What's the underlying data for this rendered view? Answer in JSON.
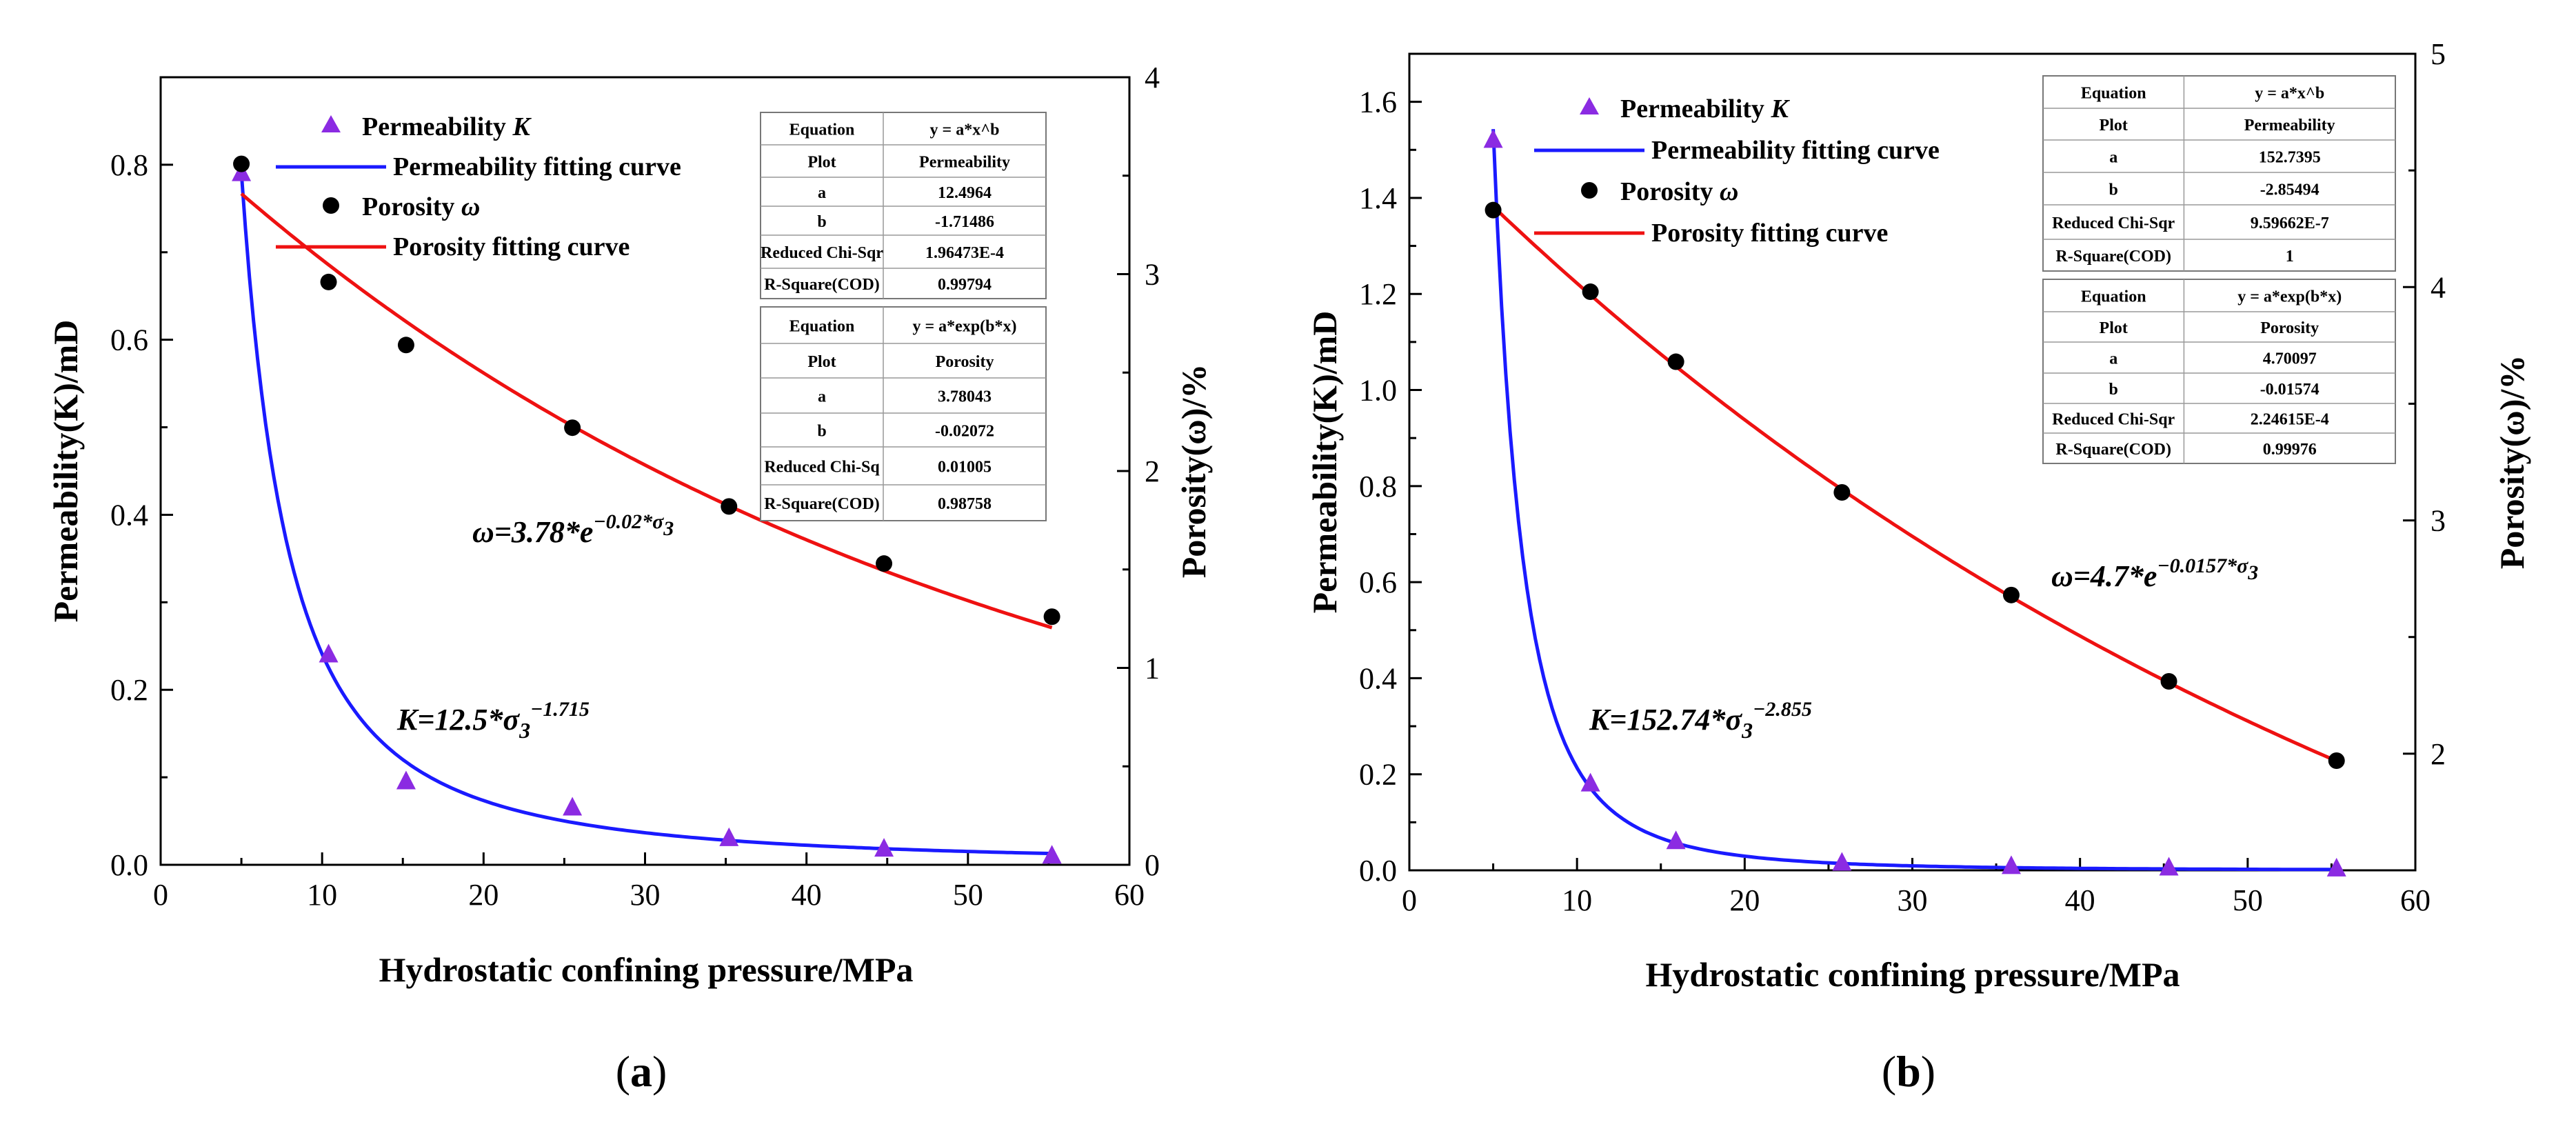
{
  "figure": {
    "panel_labels": [
      "a",
      "b"
    ]
  },
  "colors": {
    "permeability": "#8b2be2",
    "permeability_curve": "#1a1aff",
    "porosity": "#000000",
    "porosity_curve": "#ee1111"
  },
  "chart_data": [
    {
      "id": "a",
      "type": "scatter",
      "panel_label": "a",
      "xlabel": "Hydrostatic confining pressure/MPa",
      "ylabel_left": "Permeability(K)/mD",
      "ylabel_right": "Porosity(ω)/%",
      "xlim": [
        0,
        60
      ],
      "ylim_left": [
        0,
        0.9
      ],
      "ylim_right": [
        0,
        4
      ],
      "xticks": [
        0,
        10,
        20,
        30,
        40,
        50,
        60
      ],
      "yticks_left": [
        0.0,
        0.2,
        0.4,
        0.6,
        0.8
      ],
      "yticks_right": [
        0,
        1,
        2,
        3,
        4
      ],
      "xtick_labels": [
        "0",
        "10",
        "20",
        "30",
        "40",
        "50",
        "60"
      ],
      "ytick_labels_left": [
        "0.0",
        "0.2",
        "0.4",
        "0.6",
        "0.8"
      ],
      "ytick_labels_right": [
        "0",
        "1",
        "2",
        "3",
        "4"
      ],
      "legend": [
        "Permeability K",
        "Permeability fitting curve",
        "Porosity ω",
        "Porosity fitting curve"
      ],
      "series": [
        {
          "name": "Permeability K",
          "axis": "left",
          "marker": "triangle",
          "x": [
            5,
            10.4,
            15.2,
            25.5,
            35.2,
            44.8,
            55.2
          ],
          "y": [
            0.79,
            0.24,
            0.095,
            0.065,
            0.03,
            0.018,
            0.01
          ]
        },
        {
          "name": "Porosity ω",
          "axis": "right",
          "marker": "circle",
          "x": [
            5,
            10.4,
            15.2,
            25.5,
            35.2,
            44.8,
            55.2
          ],
          "y": [
            3.56,
            2.96,
            2.64,
            2.22,
            1.82,
            1.53,
            1.26
          ]
        }
      ],
      "fits": [
        {
          "name": "Permeability fitting curve",
          "axis": "left",
          "model": "power",
          "a": 12.4964,
          "b": -1.71486,
          "xrange": [
            5,
            55.2
          ]
        },
        {
          "name": "Porosity fitting curve",
          "axis": "right",
          "model": "exp",
          "a": 3.78043,
          "b": -0.02072,
          "xrange": [
            5,
            55.2
          ]
        }
      ],
      "annotations": {
        "porosity_eq": {
          "lhs": "ω",
          "rhs": "=3.78*e",
          "exp": "−0.02*σ",
          "exp_sub": "3"
        },
        "perm_eq": {
          "lhs": "K",
          "rhs": "=12.5*σ",
          "sub": "3",
          "exp": "−1.715"
        }
      },
      "tables": [
        {
          "rows": [
            [
              "Equation",
              "y = a*x^b"
            ],
            [
              "Plot",
              "Permeability"
            ],
            [
              "a",
              "12.4964"
            ],
            [
              "b",
              "-1.71486"
            ],
            [
              "Reduced Chi-Sqr",
              "1.96473E-4"
            ],
            [
              "R-Square(COD)",
              "0.99794"
            ]
          ]
        },
        {
          "rows": [
            [
              "Equation",
              "y = a*exp(b*x)"
            ],
            [
              "Plot",
              "Porosity"
            ],
            [
              "a",
              "3.78043"
            ],
            [
              "b",
              "-0.02072"
            ],
            [
              "Reduced Chi-Sq",
              "0.01005"
            ],
            [
              "R-Square(COD)",
              "0.98758"
            ]
          ]
        }
      ]
    },
    {
      "id": "b",
      "type": "scatter",
      "panel_label": "b",
      "xlabel": "Hydrostatic confining pressure/MPa",
      "ylabel_left": "Permeability(K)/mD",
      "ylabel_right": "Porosity(ω)/%",
      "xlim": [
        0,
        60
      ],
      "ylim_left": [
        0,
        1.7
      ],
      "ylim_right": [
        1.5,
        5
      ],
      "xticks": [
        0,
        10,
        20,
        30,
        40,
        50,
        60
      ],
      "yticks_left": [
        0.0,
        0.2,
        0.4,
        0.6,
        0.8,
        1.0,
        1.2,
        1.4,
        1.6
      ],
      "yticks_right": [
        2,
        3,
        4,
        5
      ],
      "xtick_labels": [
        "0",
        "10",
        "20",
        "30",
        "40",
        "50",
        "60"
      ],
      "ytick_labels_left": [
        "0.0",
        "0.2",
        "0.4",
        "0.6",
        "0.8",
        "1.0",
        "1.2",
        "1.4",
        "1.6"
      ],
      "ytick_labels_right": [
        "2",
        "3",
        "4",
        "5"
      ],
      "legend": [
        "Permeability K",
        "Permeability fitting curve",
        "Porosity ω",
        "Porosity fitting curve"
      ],
      "series": [
        {
          "name": "Permeability K",
          "axis": "left",
          "marker": "triangle",
          "x": [
            5,
            10.8,
            15.9,
            25.8,
            35.9,
            45.3,
            55.3
          ],
          "y": [
            1.52,
            0.18,
            0.06,
            0.015,
            0.008,
            0.005,
            0.003
          ]
        },
        {
          "name": "Porosity ω",
          "axis": "right",
          "marker": "circle",
          "x": [
            5,
            10.8,
            15.9,
            25.8,
            35.9,
            45.3,
            55.3
          ],
          "y": [
            4.33,
            3.98,
            3.68,
            3.12,
            2.68,
            2.31,
            1.97
          ]
        }
      ],
      "fits": [
        {
          "name": "Permeability fitting curve",
          "axis": "left",
          "model": "power",
          "a": 152.7395,
          "b": -2.85494,
          "xrange": [
            5,
            55.3
          ]
        },
        {
          "name": "Porosity fitting curve",
          "axis": "right",
          "model": "exp",
          "a": 4.70097,
          "b": -0.01574,
          "xrange": [
            5,
            55.3
          ]
        }
      ],
      "annotations": {
        "porosity_eq": {
          "lhs": "ω",
          "rhs": "=4.7*e",
          "exp": "−0.0157*σ",
          "exp_sub": "3"
        },
        "perm_eq": {
          "lhs": "K",
          "rhs": "=152.74*σ",
          "sub": "3",
          "exp": "−2.855"
        }
      },
      "tables": [
        {
          "rows": [
            [
              "Equation",
              "y = a*x^b"
            ],
            [
              "Plot",
              "Permeability"
            ],
            [
              "a",
              "152.7395"
            ],
            [
              "b",
              "-2.85494"
            ],
            [
              "Reduced Chi-Sqr",
              "9.59662E-7"
            ],
            [
              "R-Square(COD)",
              "1"
            ]
          ]
        },
        {
          "rows": [
            [
              "Equation",
              "y = a*exp(b*x)"
            ],
            [
              "Plot",
              "Porosity"
            ],
            [
              "a",
              "4.70097"
            ],
            [
              "b",
              "-0.01574"
            ],
            [
              "Reduced Chi-Sqr",
              "2.24615E-4"
            ],
            [
              "R-Square(COD)",
              "0.99976"
            ]
          ]
        }
      ]
    }
  ]
}
